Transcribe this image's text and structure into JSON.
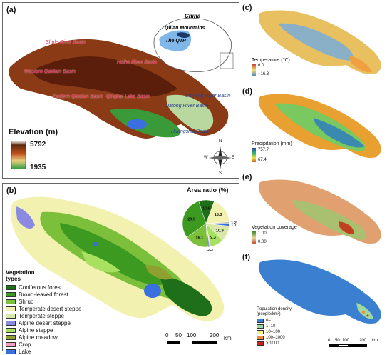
{
  "panel_a": {
    "label": "(a)",
    "country_label": "China",
    "mountains_label": "Qilian Mountains",
    "qtp_label": "The QTP",
    "basins": [
      {
        "name": "Shule River Basin",
        "style": "red"
      },
      {
        "name": "Western Qaidam Basin",
        "style": "red"
      },
      {
        "name": "Heihe River Basin",
        "style": "red"
      },
      {
        "name": "Eastern Qaidam Basin",
        "style": "red"
      },
      {
        "name": "Qinghai Lake Basin",
        "style": "red"
      },
      {
        "name": "Shiyang River Basin",
        "style": "blue"
      },
      {
        "name": "Datong River Basin",
        "style": "blue"
      },
      {
        "name": "Huangshui Basin",
        "style": "blue"
      }
    ],
    "elevation": {
      "title": "Elevation (m)",
      "max": "5792",
      "min": "1935"
    },
    "compass": {
      "n": "N",
      "s": "S",
      "e": "E",
      "w": "W"
    }
  },
  "panel_b": {
    "label": "(b)",
    "pie": {
      "title": "Area ratio (%)",
      "slices": [
        {
          "label": "18.3",
          "value": 18.3,
          "color": "#f3f1b0"
        },
        {
          "label": "1.2",
          "value": 1.2,
          "color": "#b8b8b8"
        },
        {
          "label": "1.7",
          "value": 1.7,
          "color": "#3a6fe0"
        },
        {
          "label": "10.9",
          "value": 10.9,
          "color": "#d9e8a8"
        },
        {
          "label": "9.3",
          "value": 9.3,
          "color": "#a8e060"
        },
        {
          "label": "0.6",
          "value": 0.6,
          "color": "#f5a0c0"
        },
        {
          "label": "1.5",
          "value": 1.5,
          "color": "#8a8ae0"
        },
        {
          "label": "16.1",
          "value": 16.1,
          "color": "#7bbf3a"
        },
        {
          "label": "29.9",
          "value": 29.9,
          "color": "#3d9a20"
        },
        {
          "label": "10.6",
          "value": 10.6,
          "color": "#1f6f1a"
        }
      ]
    },
    "legend_title": "Vegetation types",
    "legend": [
      {
        "label": "Coniferous forest",
        "color": "#1f6f1a"
      },
      {
        "label": "Broad-leaved forest",
        "color": "#3d9a20"
      },
      {
        "label": "Shrub",
        "color": "#7bbf3a"
      },
      {
        "label": "Temperate desert steppe",
        "color": "#f3f1b0"
      },
      {
        "label": "Temperate steppe",
        "color": "#d9e8a8"
      },
      {
        "label": "Alpine desert steppe",
        "color": "#8a8ae0"
      },
      {
        "label": "Alpine steppe",
        "color": "#a8e060"
      },
      {
        "label": "Alpine meadow",
        "color": "#8fa030"
      },
      {
        "label": "Crop",
        "color": "#f5a0c0"
      },
      {
        "label": "Lake",
        "color": "#3a6fe0"
      }
    ],
    "scalebar": {
      "ticks": [
        "0",
        "50",
        "100",
        "200"
      ],
      "unit": "km"
    }
  },
  "panel_c": {
    "label": "(c)",
    "title": "Temperature (℃)",
    "max": "6.0",
    "min": "−16.3"
  },
  "panel_d": {
    "label": "(d)",
    "title": "Precipitation (mm)",
    "max": "757.7",
    "min": "67.4"
  },
  "panel_e": {
    "label": "(e)",
    "title": "Vegetation coverage",
    "max": "1.00",
    "min": "0.00"
  },
  "panel_f": {
    "label": "(f)",
    "title_line1": "Population density",
    "title_line2": "(people/km²)",
    "classes": [
      {
        "label": "0–1",
        "color": "#3a7fd0"
      },
      {
        "label": "1–10",
        "color": "#9fd8a0"
      },
      {
        "label": "10–100",
        "color": "#f4f08a"
      },
      {
        "label": "100–1000",
        "color": "#f08a3a"
      },
      {
        "label": "> 1000",
        "color": "#d0201a"
      }
    ],
    "scalebar": {
      "ticks": [
        "0",
        "50",
        "100",
        "200"
      ],
      "unit": "km"
    }
  }
}
